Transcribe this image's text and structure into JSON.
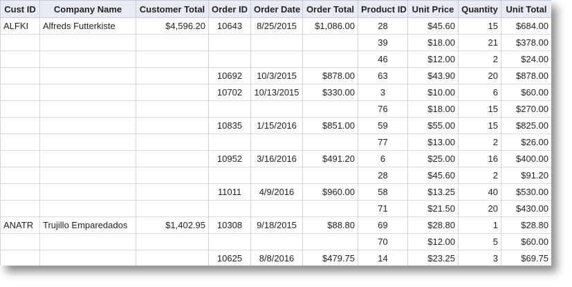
{
  "columns": [
    {
      "key": "cust_id",
      "label": "Cust ID",
      "align": "l"
    },
    {
      "key": "company",
      "label": "Company Name",
      "align": "l"
    },
    {
      "key": "cust_total",
      "label": "Customer Total",
      "align": "r"
    },
    {
      "key": "order_id",
      "label": "Order ID",
      "align": "c"
    },
    {
      "key": "order_date",
      "label": "Order Date",
      "align": "c"
    },
    {
      "key": "order_total",
      "label": "Order Total",
      "align": "r"
    },
    {
      "key": "product_id",
      "label": "Product ID",
      "align": "c"
    },
    {
      "key": "unit_price",
      "label": "Unit Price",
      "align": "r"
    },
    {
      "key": "quantity",
      "label": "Quantity",
      "align": "r"
    },
    {
      "key": "unit_total",
      "label": "Unit Total",
      "align": "r"
    }
  ],
  "rows": [
    {
      "cust_id": "ALFKI",
      "company": "Alfreds Futterkiste",
      "cust_total": "$4,596.20",
      "order_id": "10643",
      "order_date": "8/25/2015",
      "order_total": "$1,086.00",
      "product_id": "28",
      "unit_price": "$45.60",
      "quantity": "15",
      "unit_total": "$684.00"
    },
    {
      "cust_id": "",
      "company": "",
      "cust_total": "",
      "order_id": "",
      "order_date": "",
      "order_total": "",
      "product_id": "39",
      "unit_price": "$18.00",
      "quantity": "21",
      "unit_total": "$378.00"
    },
    {
      "cust_id": "",
      "company": "",
      "cust_total": "",
      "order_id": "",
      "order_date": "",
      "order_total": "",
      "product_id": "46",
      "unit_price": "$12.00",
      "quantity": "2",
      "unit_total": "$24.00"
    },
    {
      "cust_id": "",
      "company": "",
      "cust_total": "",
      "order_id": "10692",
      "order_date": "10/3/2015",
      "order_total": "$878.00",
      "product_id": "63",
      "unit_price": "$43.90",
      "quantity": "20",
      "unit_total": "$878.00"
    },
    {
      "cust_id": "",
      "company": "",
      "cust_total": "",
      "order_id": "10702",
      "order_date": "10/13/2015",
      "order_total": "$330.00",
      "product_id": "3",
      "unit_price": "$10.00",
      "quantity": "6",
      "unit_total": "$60.00"
    },
    {
      "cust_id": "",
      "company": "",
      "cust_total": "",
      "order_id": "",
      "order_date": "",
      "order_total": "",
      "product_id": "76",
      "unit_price": "$18.00",
      "quantity": "15",
      "unit_total": "$270.00"
    },
    {
      "cust_id": "",
      "company": "",
      "cust_total": "",
      "order_id": "10835",
      "order_date": "1/15/2016",
      "order_total": "$851.00",
      "product_id": "59",
      "unit_price": "$55.00",
      "quantity": "15",
      "unit_total": "$825.00"
    },
    {
      "cust_id": "",
      "company": "",
      "cust_total": "",
      "order_id": "",
      "order_date": "",
      "order_total": "",
      "product_id": "77",
      "unit_price": "$13.00",
      "quantity": "2",
      "unit_total": "$26.00"
    },
    {
      "cust_id": "",
      "company": "",
      "cust_total": "",
      "order_id": "10952",
      "order_date": "3/16/2016",
      "order_total": "$491.20",
      "product_id": "6",
      "unit_price": "$25.00",
      "quantity": "16",
      "unit_total": "$400.00"
    },
    {
      "cust_id": "",
      "company": "",
      "cust_total": "",
      "order_id": "",
      "order_date": "",
      "order_total": "",
      "product_id": "28",
      "unit_price": "$45.60",
      "quantity": "2",
      "unit_total": "$91.20"
    },
    {
      "cust_id": "",
      "company": "",
      "cust_total": "",
      "order_id": "11011",
      "order_date": "4/9/2016",
      "order_total": "$960.00",
      "product_id": "58",
      "unit_price": "$13.25",
      "quantity": "40",
      "unit_total": "$530.00"
    },
    {
      "cust_id": "",
      "company": "",
      "cust_total": "",
      "order_id": "",
      "order_date": "",
      "order_total": "",
      "product_id": "71",
      "unit_price": "$21.50",
      "quantity": "20",
      "unit_total": "$430.00"
    },
    {
      "cust_id": "ANATR",
      "company": "Trujillo Emparedados",
      "cust_total": "$1,402.95",
      "order_id": "10308",
      "order_date": "9/18/2015",
      "order_total": "$88.80",
      "product_id": "69",
      "unit_price": "$28.80",
      "quantity": "1",
      "unit_total": "$28.80"
    },
    {
      "cust_id": "",
      "company": "",
      "cust_total": "",
      "order_id": "",
      "order_date": "",
      "order_total": "",
      "product_id": "70",
      "unit_price": "$12.00",
      "quantity": "5",
      "unit_total": "$60.00"
    },
    {
      "cust_id": "",
      "company": "",
      "cust_total": "",
      "order_id": "10625",
      "order_date": "8/8/2016",
      "order_total": "$479.75",
      "product_id": "14",
      "unit_price": "$23.25",
      "quantity": "3",
      "unit_total": "$69.75"
    }
  ]
}
